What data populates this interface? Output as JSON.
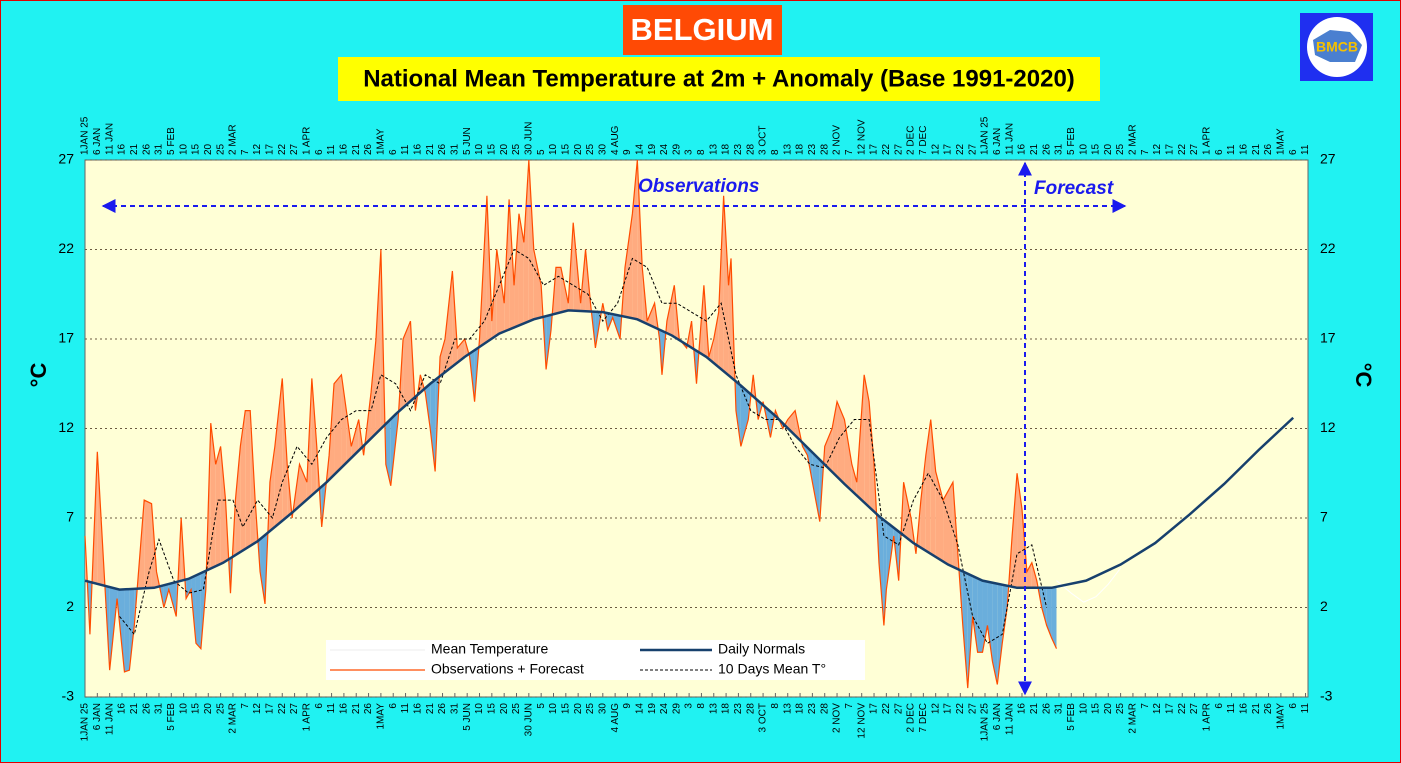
{
  "chart_data": {
    "type": "line",
    "title": "BELGIUM",
    "subtitle": "National Mean Temperature at 2m + Anomaly (Base 1991-2020)",
    "logo_text": "BMCB",
    "y_label": "°C",
    "annotations": [
      "Observations",
      "Forecast"
    ],
    "xlim": [
      0,
      496
    ],
    "ylim": [
      -3,
      27
    ],
    "yticks": [
      -3,
      2,
      7,
      12,
      17,
      22,
      27
    ],
    "grid": true,
    "fill_above_color": "#ffab80",
    "fill_below_color": "#6aaedc",
    "xticks": [
      {
        "value": 0,
        "label": "1JAN 25"
      },
      {
        "value": 5,
        "label": "6 JAN"
      },
      {
        "value": 10,
        "label": "11 JAN"
      },
      {
        "value": 15,
        "label": "16"
      },
      {
        "value": 20,
        "label": "21"
      },
      {
        "value": 25,
        "label": "26"
      },
      {
        "value": 30,
        "label": "31"
      },
      {
        "value": 35,
        "label": "5 FEB"
      },
      {
        "value": 40,
        "label": "10"
      },
      {
        "value": 45,
        "label": "15"
      },
      {
        "value": 50,
        "label": "20"
      },
      {
        "value": 55,
        "label": "25"
      },
      {
        "value": 60,
        "label": "2 MAR"
      },
      {
        "value": 65,
        "label": "7"
      },
      {
        "value": 70,
        "label": "12"
      },
      {
        "value": 75,
        "label": "17"
      },
      {
        "value": 80,
        "label": "22"
      },
      {
        "value": 85,
        "label": "27"
      },
      {
        "value": 90,
        "label": "1 APR"
      },
      {
        "value": 95,
        "label": "6"
      },
      {
        "value": 100,
        "label": "11"
      },
      {
        "value": 105,
        "label": "16"
      },
      {
        "value": 110,
        "label": "21"
      },
      {
        "value": 115,
        "label": "26"
      },
      {
        "value": 120,
        "label": "1MAY"
      },
      {
        "value": 125,
        "label": "6"
      },
      {
        "value": 130,
        "label": "11"
      },
      {
        "value": 135,
        "label": "16"
      },
      {
        "value": 140,
        "label": "21"
      },
      {
        "value": 145,
        "label": "26"
      },
      {
        "value": 150,
        "label": "31"
      },
      {
        "value": 155,
        "label": "5 JUN"
      },
      {
        "value": 160,
        "label": "10"
      },
      {
        "value": 165,
        "label": "15"
      },
      {
        "value": 170,
        "label": "20"
      },
      {
        "value": 175,
        "label": "25"
      },
      {
        "value": 180,
        "label": "30 JUN"
      },
      {
        "value": 185,
        "label": "5"
      },
      {
        "value": 190,
        "label": "10"
      },
      {
        "value": 195,
        "label": "15"
      },
      {
        "value": 200,
        "label": "20"
      },
      {
        "value": 205,
        "label": "25"
      },
      {
        "value": 210,
        "label": "30"
      },
      {
        "value": 215,
        "label": "4 AUG"
      },
      {
        "value": 220,
        "label": "9"
      },
      {
        "value": 225,
        "label": "14"
      },
      {
        "value": 230,
        "label": "19"
      },
      {
        "value": 235,
        "label": "24"
      },
      {
        "value": 240,
        "label": "29"
      },
      {
        "value": 245,
        "label": "3"
      },
      {
        "value": 250,
        "label": "8"
      },
      {
        "value": 255,
        "label": "13"
      },
      {
        "value": 260,
        "label": "18"
      },
      {
        "value": 265,
        "label": "23"
      },
      {
        "value": 270,
        "label": "28"
      },
      {
        "value": 275,
        "label": "3 OCT"
      },
      {
        "value": 280,
        "label": "8"
      },
      {
        "value": 285,
        "label": "13"
      },
      {
        "value": 290,
        "label": "18"
      },
      {
        "value": 295,
        "label": "23"
      },
      {
        "value": 300,
        "label": "28"
      },
      {
        "value": 305,
        "label": "2 NOV"
      },
      {
        "value": 310,
        "label": "7"
      },
      {
        "value": 315,
        "label": "12 NOV"
      },
      {
        "value": 320,
        "label": "17"
      },
      {
        "value": 325,
        "label": "22"
      },
      {
        "value": 330,
        "label": "27"
      },
      {
        "value": 335,
        "label": "2 DEC"
      },
      {
        "value": 340,
        "label": "7 DEC"
      },
      {
        "value": 345,
        "label": "12"
      },
      {
        "value": 350,
        "label": "17"
      },
      {
        "value": 355,
        "label": "22"
      },
      {
        "value": 360,
        "label": "27"
      },
      {
        "value": 365,
        "label": "1JAN 25"
      },
      {
        "value": 370,
        "label": "6 JAN"
      },
      {
        "value": 375,
        "label": "11 JAN"
      },
      {
        "value": 380,
        "label": "16"
      },
      {
        "value": 385,
        "label": "21"
      },
      {
        "value": 390,
        "label": "26"
      },
      {
        "value": 395,
        "label": "31"
      },
      {
        "value": 400,
        "label": "5 FEB"
      },
      {
        "value": 405,
        "label": "10"
      },
      {
        "value": 410,
        "label": "15"
      },
      {
        "value": 415,
        "label": "20"
      },
      {
        "value": 420,
        "label": "25"
      },
      {
        "value": 425,
        "label": "2 MAR"
      },
      {
        "value": 430,
        "label": "7"
      },
      {
        "value": 435,
        "label": "12"
      },
      {
        "value": 440,
        "label": "17"
      },
      {
        "value": 445,
        "label": "22"
      },
      {
        "value": 450,
        "label": "27"
      },
      {
        "value": 455,
        "label": "1 APR"
      },
      {
        "value": 460,
        "label": "6"
      },
      {
        "value": 465,
        "label": "11"
      },
      {
        "value": 470,
        "label": "16"
      },
      {
        "value": 475,
        "label": "21"
      },
      {
        "value": 480,
        "label": "26"
      },
      {
        "value": 485,
        "label": "1MAY"
      },
      {
        "value": 490,
        "label": "6"
      },
      {
        "value": 495,
        "label": "11"
      }
    ],
    "series": [
      {
        "name": "Mean Temperature",
        "color": "#ffffff",
        "width": 1,
        "x": [
          394,
          400,
          405,
          410,
          415,
          420
        ],
        "values": [
          3.5,
          2.8,
          2.3,
          2.6,
          3.3,
          4.2
        ]
      },
      {
        "name": "Observations + Forecast",
        "color": "#ff4c00",
        "width": 1.2,
        "x": [
          0,
          2,
          5,
          10,
          13,
          16,
          18,
          20,
          24,
          27,
          29,
          32,
          34,
          37,
          39,
          41,
          43,
          45,
          47,
          49,
          51,
          53,
          55,
          57,
          59,
          61,
          63,
          65,
          67,
          69,
          71,
          73,
          75,
          77,
          80,
          82,
          84,
          87,
          90,
          92,
          94,
          96,
          99,
          101,
          104,
          106,
          108,
          111,
          113,
          116,
          118,
          120,
          122,
          124,
          127,
          129,
          132,
          134,
          136,
          138,
          140,
          142,
          144,
          146,
          149,
          151,
          154,
          156,
          158,
          160,
          163,
          165,
          167,
          170,
          172,
          174,
          176,
          178,
          180,
          182,
          185,
          187,
          189,
          191,
          193,
          196,
          198,
          201,
          203,
          205,
          207,
          210,
          212,
          214,
          217,
          219,
          222,
          224,
          226,
          228,
          231,
          233,
          234,
          236,
          239,
          241,
          244,
          246,
          248,
          251,
          253,
          255,
          257,
          259,
          261,
          262,
          264,
          266,
          269,
          271,
          273,
          275,
          278,
          280,
          283,
          285,
          288,
          291,
          293,
          295,
          298,
          300,
          303,
          305,
          308,
          311,
          313,
          316,
          318,
          320,
          322,
          324,
          325,
          328,
          330,
          332,
          335,
          337,
          339,
          341,
          343,
          345,
          348,
          350,
          352,
          354,
          356,
          358,
          360,
          362,
          364,
          366,
          368,
          370,
          372,
          374,
          376,
          378,
          380,
          382,
          384,
          386,
          388,
          390,
          392,
          394
        ],
        "values": [
          6,
          0.5,
          10.7,
          -1.5,
          2.5,
          -1.6,
          -1.5,
          1,
          8,
          7.8,
          4,
          2,
          3,
          1.5,
          7,
          2.5,
          3,
          0,
          -0.3,
          3,
          12.3,
          10,
          11,
          8,
          2.8,
          8,
          11,
          13,
          13,
          8,
          4,
          2.2,
          9,
          11,
          14.8,
          10,
          7,
          10,
          9,
          14.8,
          11,
          6.5,
          10.5,
          14.5,
          15,
          13,
          11,
          12.5,
          10.5,
          14,
          17,
          22,
          10,
          8.8,
          12.5,
          17,
          18,
          13,
          15,
          14,
          12,
          9.6,
          16,
          17,
          20.8,
          16.5,
          17,
          16,
          13.5,
          17,
          25,
          18,
          22,
          19,
          24.8,
          20,
          24,
          22.4,
          27,
          22,
          20,
          15.3,
          17.5,
          21,
          21,
          19,
          23.5,
          19,
          22,
          19,
          16.5,
          19,
          17.5,
          18.2,
          17,
          21,
          24,
          27,
          21,
          18,
          19,
          17,
          15,
          18,
          20,
          17,
          16.5,
          18,
          14.5,
          20,
          16,
          17,
          18.5,
          25,
          20,
          21.5,
          13,
          11,
          12.5,
          15,
          12.5,
          13.5,
          11.5,
          13,
          12,
          12.5,
          13,
          11,
          10.5,
          9,
          6.8,
          11,
          12,
          13.5,
          12.5,
          10,
          9,
          15,
          13.5,
          10,
          4.5,
          1,
          3,
          6,
          3.5,
          9,
          7,
          5,
          8,
          10.5,
          12.5,
          9.6,
          8,
          8.5,
          9,
          5,
          1,
          -2.5,
          1.5,
          -0.5,
          -0.5,
          1,
          -1,
          -2.3,
          0,
          2,
          6,
          9.5,
          7.5,
          4,
          4.5,
          3.5,
          2,
          1,
          0.3,
          -0.3
        ]
      },
      {
        "name": "Daily Normals",
        "color": "#17406d",
        "width": 2.5,
        "x": [
          0,
          14,
          28,
          42,
          56,
          70,
          84,
          98,
          112,
          126,
          140,
          154,
          168,
          182,
          196,
          210,
          224,
          238,
          252,
          266,
          280,
          294,
          308,
          322,
          336,
          350,
          364,
          378,
          392,
          406,
          420,
          434,
          448,
          462,
          476,
          490
        ],
        "values": [
          3.5,
          3.0,
          3.1,
          3.6,
          4.5,
          5.7,
          7.3,
          9.0,
          10.9,
          12.8,
          14.5,
          16.0,
          17.3,
          18.1,
          18.6,
          18.5,
          18.1,
          17.2,
          16.0,
          14.4,
          12.7,
          10.8,
          8.9,
          7.1,
          5.6,
          4.4,
          3.5,
          3.1,
          3.1,
          3.5,
          4.4,
          5.6,
          7.2,
          8.9,
          10.8,
          12.6
        ]
      },
      {
        "name": "10 Days Mean T°",
        "color": "#000000",
        "width": 1,
        "dash": true,
        "x": [
          14,
          20,
          26,
          30,
          36,
          42,
          48,
          54,
          60,
          64,
          70,
          76,
          80,
          86,
          92,
          98,
          104,
          110,
          116,
          120,
          126,
          132,
          138,
          144,
          150,
          156,
          162,
          168,
          174,
          180,
          186,
          192,
          198,
          204,
          210,
          216,
          222,
          228,
          234,
          240,
          246,
          252,
          258,
          264,
          270,
          276,
          282,
          288,
          294,
          300,
          306,
          312,
          318,
          324,
          330,
          336,
          342,
          348,
          354,
          360,
          366,
          372,
          378,
          384,
          390
        ],
        "values": [
          1.5,
          0.5,
          4,
          5.8,
          3.5,
          2.8,
          3,
          8,
          8,
          6.5,
          8,
          7,
          9,
          11,
          10,
          11.5,
          12.5,
          13,
          13,
          15,
          14.5,
          13,
          15,
          14.5,
          17,
          17,
          18,
          20,
          22,
          21.5,
          20,
          20.5,
          20,
          19.5,
          18,
          19,
          21.5,
          21,
          19,
          19,
          18.5,
          18,
          19,
          15,
          13,
          12.5,
          12.5,
          11,
          10,
          9.8,
          11.5,
          12.5,
          12.5,
          6,
          5.5,
          8,
          9.5,
          8,
          5.5,
          1.5,
          0,
          0.5,
          5,
          5.5,
          2
        ]
      }
    ]
  }
}
